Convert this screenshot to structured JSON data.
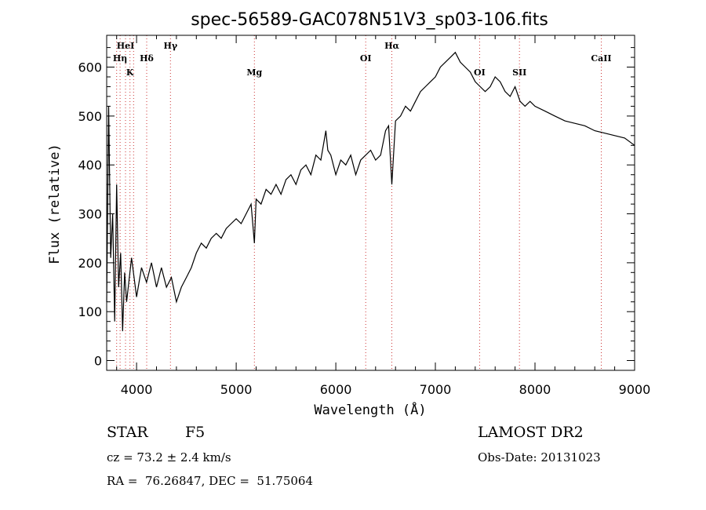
{
  "chart_data": {
    "type": "line",
    "title": "spec-56589-GAC078N51V3_sp03-106.fits",
    "xlabel": "Wavelength (Å)",
    "ylabel": "Flux (relative)",
    "xlim": [
      3700,
      9000
    ],
    "ylim": [
      -20,
      665
    ],
    "x_ticks": [
      4000,
      5000,
      6000,
      7000,
      8000,
      9000
    ],
    "y_ticks": [
      0,
      100,
      200,
      300,
      400,
      500,
      600
    ],
    "grid": false,
    "series": [
      {
        "x": [
          3700,
          3720,
          3740,
          3760,
          3780,
          3800,
          3820,
          3840,
          3860,
          3880,
          3900,
          3950,
          4000,
          4050,
          4100,
          4150,
          4200,
          4250,
          4300,
          4350,
          4400,
          4450,
          4500,
          4550,
          4600,
          4650,
          4700,
          4750,
          4800,
          4850,
          4900,
          4950,
          5000,
          5050,
          5100,
          5150,
          5183,
          5200,
          5250,
          5300,
          5350,
          5400,
          5450,
          5500,
          5550,
          5600,
          5650,
          5700,
          5750,
          5800,
          5850,
          5900,
          5920,
          5950,
          6000,
          6050,
          6100,
          6150,
          6200,
          6250,
          6300,
          6350,
          6400,
          6450,
          6500,
          6530,
          6563,
          6600,
          6650,
          6700,
          6750,
          6800,
          6850,
          6900,
          6950,
          7000,
          7050,
          7100,
          7150,
          7200,
          7250,
          7300,
          7350,
          7400,
          7450,
          7500,
          7550,
          7600,
          7650,
          7700,
          7750,
          7800,
          7850,
          7900,
          7950,
          8000,
          8100,
          8200,
          8300,
          8400,
          8500,
          8600,
          8700,
          8800,
          8900,
          9000
        ],
        "y": [
          120,
          520,
          210,
          300,
          80,
          360,
          150,
          220,
          60,
          180,
          120,
          210,
          130,
          190,
          160,
          200,
          150,
          190,
          150,
          170,
          120,
          150,
          170,
          190,
          220,
          240,
          230,
          250,
          260,
          250,
          270,
          280,
          290,
          280,
          300,
          320,
          240,
          330,
          320,
          350,
          340,
          360,
          340,
          370,
          380,
          360,
          390,
          400,
          380,
          420,
          410,
          470,
          430,
          420,
          380,
          410,
          400,
          420,
          380,
          410,
          420,
          430,
          410,
          420,
          470,
          480,
          360,
          490,
          500,
          520,
          510,
          530,
          550,
          560,
          570,
          580,
          600,
          610,
          620,
          630,
          610,
          600,
          590,
          570,
          560,
          550,
          560,
          580,
          570,
          550,
          540,
          560,
          530,
          520,
          530,
          520,
          510,
          500,
          490,
          485,
          480,
          470,
          465,
          460,
          455,
          440
        ]
      }
    ],
    "line_labels": [
      {
        "label": "HeI",
        "x": 3889,
        "row": 0
      },
      {
        "label": "Hη",
        "x": 3835,
        "row": 1
      },
      {
        "label": "K",
        "x": 3934,
        "row": 2
      },
      {
        "label": "Hδ",
        "x": 4102,
        "row": 1
      },
      {
        "label": "Hγ",
        "x": 4340,
        "row": 0
      },
      {
        "label": "Mg",
        "x": 5183,
        "row": 2
      },
      {
        "label": "OI",
        "x": 6300,
        "row": 1
      },
      {
        "label": "Hα",
        "x": 6563,
        "row": 0
      },
      {
        "label": "OI",
        "x": 7444,
        "row": 2
      },
      {
        "label": "SII",
        "x": 7844,
        "row": 2
      },
      {
        "label": "CaII",
        "x": 8665,
        "row": 1
      }
    ],
    "line_marker_x": [
      3800,
      3835,
      3889,
      3934,
      3970,
      4102,
      4340,
      5183,
      6300,
      6563,
      7444,
      7844,
      8665
    ]
  },
  "footer": {
    "object_class": "STAR",
    "subclass": "F5",
    "survey": "LAMOST DR2",
    "cz": "cz = 73.2 ± 2.4 km/s",
    "obs_date": "Obs-Date: 20131023",
    "radec": "RA =  76.26847, DEC =  51.75064"
  }
}
